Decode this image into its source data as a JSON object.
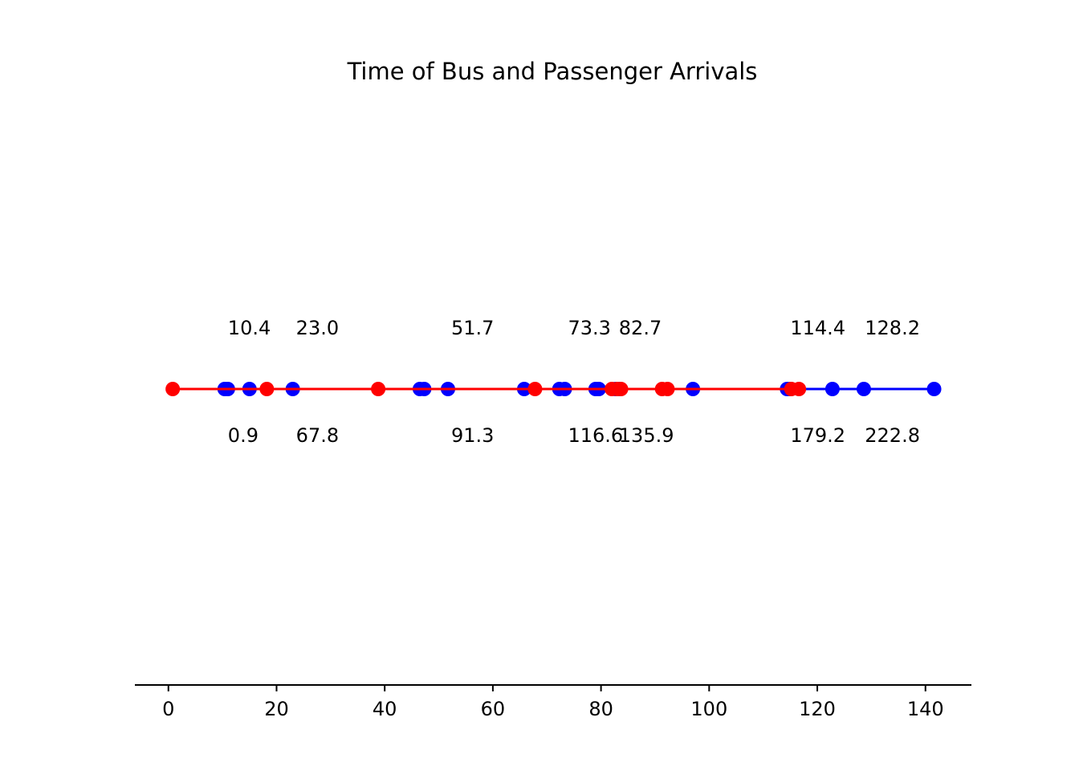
{
  "chart_data": {
    "type": "scatter",
    "title": "Time of Bus and Passenger Arrivals",
    "xlabel": "",
    "ylabel": "",
    "xlim": [
      -6.2,
      148.5
    ],
    "xticks": [
      0,
      20,
      40,
      60,
      80,
      100,
      120,
      140
    ],
    "grid": false,
    "series": [
      {
        "color": "#0000ff",
        "x": [
          10.4,
          11.0,
          15.0,
          23.0,
          46.5,
          47.3,
          51.7,
          65.8,
          72.3,
          73.3,
          79.0,
          79.6,
          82.7,
          83.5,
          97.0,
          114.4,
          115.0,
          122.8,
          128.6,
          141.6
        ]
      },
      {
        "color": "#ff0000",
        "x": [
          0.8,
          18.2,
          38.8,
          67.8,
          82.0,
          83.0,
          83.7,
          91.3,
          92.3,
          115.2,
          116.6
        ]
      }
    ],
    "annotations_above": [
      {
        "x": 10.4,
        "text": "10.4"
      },
      {
        "x": 23.0,
        "text": "23.0"
      },
      {
        "x": 51.7,
        "text": "51.7"
      },
      {
        "x": 73.3,
        "text": "73.3"
      },
      {
        "x": 82.7,
        "text": "82.7"
      },
      {
        "x": 114.4,
        "text": "114.4"
      },
      {
        "x": 128.2,
        "text": "128.2"
      }
    ],
    "annotations_below": [
      {
        "x": 10.4,
        "text": "0.9"
      },
      {
        "x": 23.0,
        "text": "67.8"
      },
      {
        "x": 51.7,
        "text": "91.3"
      },
      {
        "x": 73.3,
        "text": "116.6"
      },
      {
        "x": 82.7,
        "text": "135.9"
      },
      {
        "x": 114.4,
        "text": "179.2"
      },
      {
        "x": 128.2,
        "text": "222.8"
      }
    ]
  }
}
